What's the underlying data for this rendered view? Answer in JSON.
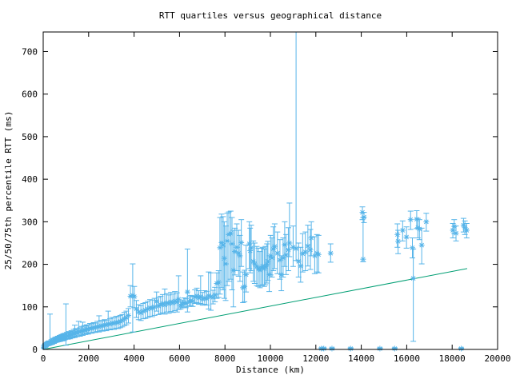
{
  "title": "RTT quartiles versus geographical distance",
  "axes": {
    "x": {
      "label": "Distance (km)",
      "min": 0,
      "max": 20000,
      "ticks": [
        0,
        2000,
        4000,
        6000,
        8000,
        10000,
        12000,
        14000,
        16000,
        18000,
        20000
      ]
    },
    "y": {
      "label": "25/50/75th percentile RTT (ms)",
      "min": 0,
      "max": 746,
      "ticks": [
        0,
        100,
        200,
        300,
        400,
        500,
        600,
        700
      ]
    }
  },
  "colors": {
    "points": "#56B4E9",
    "line": "#009E73",
    "axis": "#000000",
    "background": "#FFFFFF"
  },
  "chart_data": {
    "type": "scatter",
    "title": "RTT quartiles versus geographical distance",
    "xlabel": "Distance (km)",
    "ylabel": "25/50/75th percentile RTT (ms)",
    "xlim": [
      0,
      20000
    ],
    "ylim": [
      0,
      746
    ],
    "grid": false,
    "legend": "none",
    "point_format": [
      "distance_km",
      "median_ms",
      "p25_ms",
      "p75_ms"
    ],
    "series": [
      {
        "name": "rtt-quartiles",
        "marker": "asterisk-with-error-bars",
        "color": "#56B4E9",
        "points": [
          [
            30,
            5,
            3,
            8
          ],
          [
            60,
            8,
            5,
            12
          ],
          [
            90,
            10,
            6,
            14
          ],
          [
            120,
            9,
            6,
            13
          ],
          [
            150,
            12,
            8,
            16
          ],
          [
            180,
            14,
            9,
            18
          ],
          [
            210,
            13,
            9,
            17
          ],
          [
            240,
            15,
            10,
            20
          ],
          [
            270,
            14,
            10,
            19
          ],
          [
            300,
            16,
            12,
            83
          ],
          [
            330,
            15,
            11,
            20
          ],
          [
            360,
            18,
            13,
            23
          ],
          [
            400,
            17,
            12,
            22
          ],
          [
            440,
            20,
            15,
            26
          ],
          [
            480,
            19,
            14,
            25
          ],
          [
            520,
            21,
            16,
            28
          ],
          [
            560,
            23,
            17,
            29
          ],
          [
            600,
            22,
            17,
            28
          ],
          [
            640,
            25,
            19,
            31
          ],
          [
            680,
            24,
            18,
            30
          ],
          [
            720,
            26,
            20,
            33
          ],
          [
            760,
            25,
            19,
            32
          ],
          [
            800,
            28,
            21,
            35
          ],
          [
            840,
            27,
            20,
            34
          ],
          [
            880,
            29,
            22,
            37
          ],
          [
            920,
            28,
            21,
            36
          ],
          [
            960,
            30,
            23,
            38
          ],
          [
            1000,
            29,
            10,
            107
          ],
          [
            1040,
            32,
            25,
            40
          ],
          [
            1090,
            31,
            24,
            39
          ],
          [
            1140,
            34,
            26,
            42
          ],
          [
            1190,
            33,
            25,
            41
          ],
          [
            1240,
            36,
            28,
            44
          ],
          [
            1290,
            35,
            27,
            43
          ],
          [
            1340,
            38,
            29,
            47
          ],
          [
            1390,
            37,
            28,
            57
          ],
          [
            1440,
            40,
            31,
            49
          ],
          [
            1490,
            39,
            30,
            48
          ],
          [
            1560,
            42,
            32,
            66
          ],
          [
            1620,
            41,
            31,
            51
          ],
          [
            1680,
            44,
            34,
            54
          ],
          [
            1740,
            43,
            33,
            64
          ],
          [
            1800,
            46,
            36,
            56
          ],
          [
            1860,
            45,
            35,
            55
          ],
          [
            1920,
            48,
            37,
            58
          ],
          [
            1980,
            47,
            36,
            57
          ],
          [
            2060,
            50,
            39,
            61
          ],
          [
            2140,
            49,
            38,
            60
          ],
          [
            2220,
            52,
            40,
            63
          ],
          [
            2300,
            51,
            40,
            62
          ],
          [
            2380,
            54,
            42,
            66
          ],
          [
            2460,
            53,
            41,
            79
          ],
          [
            2540,
            56,
            44,
            68
          ],
          [
            2620,
            55,
            43,
            67
          ],
          [
            2700,
            58,
            45,
            70
          ],
          [
            2780,
            57,
            44,
            69
          ],
          [
            2860,
            60,
            47,
            90
          ],
          [
            2940,
            59,
            46,
            72
          ],
          [
            3030,
            62,
            48,
            75
          ],
          [
            3120,
            61,
            47,
            74
          ],
          [
            3210,
            64,
            50,
            78
          ],
          [
            3300,
            63,
            49,
            77
          ],
          [
            3390,
            66,
            51,
            80
          ],
          [
            3480,
            68,
            53,
            82
          ],
          [
            3570,
            72,
            56,
            87
          ],
          [
            3660,
            75,
            58,
            90
          ],
          [
            3750,
            80,
            62,
            96
          ],
          [
            3840,
            125,
            100,
            150
          ],
          [
            3940,
            127,
            41,
            201
          ],
          [
            4010,
            124,
            98,
            148
          ],
          [
            4100,
            95,
            75,
            115
          ],
          [
            4200,
            88,
            70,
            105
          ],
          [
            4300,
            86,
            68,
            103
          ],
          [
            4400,
            90,
            72,
            108
          ],
          [
            4500,
            92,
            73,
            110
          ],
          [
            4600,
            95,
            75,
            113
          ],
          [
            4700,
            98,
            78,
            117
          ],
          [
            4800,
            97,
            77,
            116
          ],
          [
            4900,
            100,
            80,
            120
          ],
          [
            4990,
            113,
            90,
            135
          ],
          [
            5080,
            102,
            82,
            122
          ],
          [
            5170,
            105,
            84,
            125
          ],
          [
            5260,
            108,
            86,
            129
          ],
          [
            5350,
            104,
            83,
            142
          ],
          [
            5440,
            110,
            88,
            131
          ],
          [
            5530,
            107,
            85,
            128
          ],
          [
            5620,
            112,
            89,
            134
          ],
          [
            5710,
            109,
            87,
            130
          ],
          [
            5800,
            114,
            91,
            136
          ],
          [
            5890,
            111,
            88,
            133
          ],
          [
            5960,
            118,
            94,
            173
          ],
          [
            6050,
            103,
            95,
            112
          ],
          [
            6120,
            106,
            98,
            116
          ],
          [
            6200,
            110,
            100,
            121
          ],
          [
            6280,
            108,
            98,
            119
          ],
          [
            6350,
            135,
            88,
            236
          ],
          [
            6430,
            112,
            101,
            124
          ],
          [
            6500,
            115,
            103,
            127
          ],
          [
            6580,
            113,
            101,
            125
          ],
          [
            6680,
            123,
            108,
            140
          ],
          [
            6760,
            126,
            110,
            144
          ],
          [
            6850,
            121,
            106,
            138
          ],
          [
            6930,
            124,
            108,
            173
          ],
          [
            7020,
            118,
            104,
            134
          ],
          [
            7110,
            121,
            106,
            138
          ],
          [
            7200,
            119,
            104,
            136
          ],
          [
            7280,
            126,
            95,
            182
          ],
          [
            7380,
            124,
            92,
            180
          ],
          [
            7470,
            122,
            107,
            139
          ],
          [
            7560,
            128,
            112,
            146
          ],
          [
            7640,
            155,
            120,
            180
          ],
          [
            7720,
            158,
            122,
            185
          ],
          [
            7780,
            239,
            130,
            310
          ],
          [
            7850,
            251,
            145,
            318
          ],
          [
            7920,
            245,
            140,
            312
          ],
          [
            7970,
            214,
            120,
            300
          ],
          [
            8030,
            201,
            115,
            290
          ],
          [
            8100,
            255,
            150,
            320
          ],
          [
            8170,
            270,
            160,
            323
          ],
          [
            8250,
            273,
            165,
            325
          ],
          [
            8310,
            248,
            140,
            310
          ],
          [
            8370,
            186,
            100,
            280
          ],
          [
            8440,
            230,
            175,
            285
          ],
          [
            8520,
            240,
            185,
            295
          ],
          [
            8600,
            226,
            172,
            280
          ],
          [
            8660,
            220,
            160,
            268
          ],
          [
            8720,
            251,
            195,
            305
          ],
          [
            8790,
            145,
            110,
            182
          ],
          [
            8860,
            148,
            112,
            186
          ],
          [
            8930,
            176,
            135,
            245
          ],
          [
            9075,
            248,
            190,
            300
          ],
          [
            9110,
            232,
            180,
            285
          ],
          [
            9155,
            239,
            185,
            292
          ],
          [
            9250,
            207,
            160,
            255
          ],
          [
            9310,
            201,
            155,
            250
          ],
          [
            9400,
            195,
            150,
            242
          ],
          [
            9470,
            190,
            148,
            238
          ],
          [
            9540,
            186,
            145,
            230
          ],
          [
            9610,
            192,
            150,
            238
          ],
          [
            9660,
            195,
            152,
            240
          ],
          [
            9730,
            190,
            148,
            236
          ],
          [
            9780,
            195,
            152,
            242
          ],
          [
            9850,
            200,
            156,
            248
          ],
          [
            9890,
            207,
            162,
            254
          ],
          [
            9950,
            176,
            136,
            220
          ],
          [
            10010,
            220,
            175,
            268
          ],
          [
            10070,
            215,
            170,
            262
          ],
          [
            10130,
            236,
            185,
            288
          ],
          [
            10190,
            242,
            190,
            295
          ],
          [
            10310,
            226,
            178,
            276
          ],
          [
            10420,
            210,
            165,
            258
          ],
          [
            10480,
            176,
            138,
            220
          ],
          [
            10560,
            215,
            170,
            262
          ],
          [
            10630,
            246,
            195,
            300
          ],
          [
            10690,
            222,
            176,
            270
          ],
          [
            10790,
            234,
            185,
            286
          ],
          [
            10840,
            250,
            218,
            344
          ],
          [
            11000,
            240,
            195,
            290
          ],
          [
            11130,
            237,
            209,
            750
          ],
          [
            11240,
            207,
            170,
            250
          ],
          [
            11330,
            196,
            158,
            240
          ],
          [
            11420,
            225,
            182,
            272
          ],
          [
            11540,
            229,
            185,
            276
          ],
          [
            11650,
            243,
            196,
            292
          ],
          [
            11760,
            234,
            188,
            282
          ],
          [
            11800,
            262,
            220,
            300
          ],
          [
            11950,
            220,
            178,
            265
          ],
          [
            12050,
            226,
            182,
            270
          ],
          [
            12120,
            223,
            180,
            268
          ],
          [
            12250,
            2,
            1,
            4
          ],
          [
            12350,
            2,
            1,
            4
          ],
          [
            12650,
            226,
            205,
            248
          ],
          [
            12710,
            2,
            1,
            4
          ],
          [
            13530,
            2,
            1,
            4
          ],
          [
            14050,
            322,
            305,
            335
          ],
          [
            14120,
            311,
            298,
            322
          ],
          [
            14080,
            212,
            206,
            310
          ],
          [
            14820,
            2,
            1,
            4
          ],
          [
            15470,
            2,
            1,
            4
          ],
          [
            15590,
            270,
            240,
            295
          ],
          [
            15620,
            254,
            225,
            280
          ],
          [
            15820,
            280,
            255,
            302
          ],
          [
            15990,
            264,
            238,
            288
          ],
          [
            16170,
            305,
            282,
            325
          ],
          [
            16250,
            239,
            215,
            262
          ],
          [
            16290,
            167,
            19,
            236
          ],
          [
            16440,
            306,
            284,
            326
          ],
          [
            16490,
            286,
            262,
            308
          ],
          [
            16560,
            283,
            258,
            305
          ],
          [
            16660,
            245,
            201,
            285
          ],
          [
            16860,
            300,
            278,
            320
          ],
          [
            18030,
            280,
            262,
            296
          ],
          [
            18090,
            289,
            272,
            305
          ],
          [
            18170,
            273,
            255,
            290
          ],
          [
            18400,
            2,
            1,
            4
          ],
          [
            18500,
            292,
            276,
            308
          ],
          [
            18560,
            286,
            270,
            302
          ],
          [
            18640,
            280,
            262,
            296
          ]
        ]
      },
      {
        "name": "reference-line",
        "type": "line",
        "color": "#009E73",
        "points": [
          [
            0,
            0
          ],
          [
            18660,
            190
          ]
        ]
      }
    ]
  }
}
